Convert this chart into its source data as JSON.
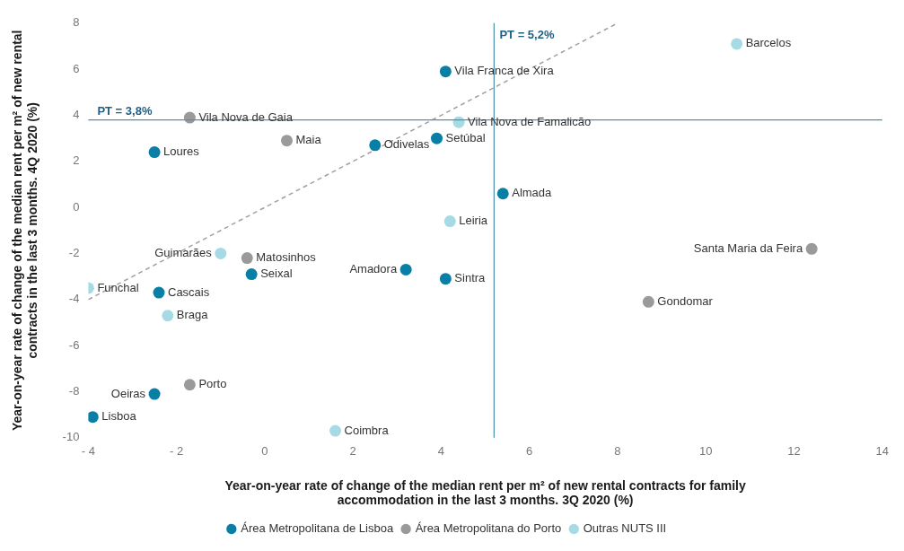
{
  "chart_data": {
    "type": "scatter",
    "xlabel": "Year-on-year rate of change of the median rent per m² of new rental contracts for family accommodation in the last 3 months. 3Q 2020 (%)",
    "ylabel": "Year-on-year rate of change of the median rent per m² of new rental contracts in the last 3 months. 4Q 2020 (%)",
    "xlim": [
      -4,
      14
    ],
    "xticks": [
      {
        "value": -4,
        "label": "- 4"
      },
      {
        "value": -2,
        "label": "- 2"
      },
      0,
      2,
      4,
      6,
      8,
      10,
      12,
      14
    ],
    "ylim": [
      -10,
      8
    ],
    "yticks": [
      -10,
      -8,
      -6,
      -4,
      -2,
      0,
      2,
      4,
      6,
      8
    ],
    "grid": false,
    "legend": "bottom",
    "marker": "circle",
    "series": [
      {
        "name": "Área Metropolitana de Lisboa",
        "color": "#0a7fa5",
        "x": [
          4.1,
          2.5,
          3.9,
          -2.5,
          5.4,
          -0.3,
          3.2,
          4.1,
          -2.4,
          -2.5,
          -3.9
        ],
        "values": [
          5.9,
          2.7,
          3.0,
          2.4,
          0.6,
          -2.9,
          -2.7,
          -3.1,
          -3.7,
          -8.1,
          -9.1
        ]
      },
      {
        "name": "Área Metropolitana do Porto",
        "color": "#9a9a9a",
        "x": [
          -1.7,
          0.5,
          -0.4,
          12.4,
          8.7,
          -1.7
        ],
        "values": [
          3.9,
          2.9,
          -2.2,
          -1.8,
          -4.1,
          -7.7
        ]
      },
      {
        "name": "Outras NUTS III",
        "color": "#a6dbe6",
        "x": [
          10.7,
          4.4,
          4.2,
          -1.0,
          -4.0,
          -2.2,
          1.6
        ],
        "values": [
          7.1,
          3.7,
          -0.6,
          -2.0,
          -3.5,
          -4.7,
          -9.7
        ]
      },
      {
        "type": "line",
        "color": "#a0a0a0",
        "line_style": "dashed",
        "marker": "none",
        "x": [
          -4,
          8
        ],
        "values": [
          -4,
          8
        ]
      }
    ],
    "ref_lines": [
      {
        "axis": "x",
        "value": 5.2,
        "label": "PT = 5,2%",
        "color": "#4f93b0"
      },
      {
        "axis": "y",
        "value": 3.8,
        "label": "PT = 3,8%",
        "color": "#4f93b0"
      }
    ],
    "annotations": [
      {
        "text": "Vila Franca de Xira",
        "x": 4.1,
        "y": 5.9
      },
      {
        "text": "Odivelas",
        "x": 2.5,
        "y": 2.7
      },
      {
        "text": "Setúbal",
        "x": 3.9,
        "y": 3.0
      },
      {
        "text": "Loures",
        "x": -2.5,
        "y": 2.4
      },
      {
        "text": "Almada",
        "x": 5.4,
        "y": 0.6
      },
      {
        "text": "Seixal",
        "x": -0.3,
        "y": -2.9
      },
      {
        "text": "Amadora",
        "x": 3.2,
        "y": -2.7
      },
      {
        "text": "Sintra",
        "x": 4.1,
        "y": -3.1
      },
      {
        "text": "Cascais",
        "x": -2.4,
        "y": -3.7
      },
      {
        "text": "Oeiras",
        "x": -2.5,
        "y": -8.1
      },
      {
        "text": "Lisboa",
        "x": -3.9,
        "y": -9.1
      },
      {
        "text": "Vila Nova de Gaia",
        "x": -1.7,
        "y": 3.9
      },
      {
        "text": "Maia",
        "x": 0.5,
        "y": 2.9
      },
      {
        "text": "Matosinhos",
        "x": -0.4,
        "y": -2.2
      },
      {
        "text": "Santa Maria da Feira",
        "x": 12.4,
        "y": -1.8
      },
      {
        "text": "Gondomar",
        "x": 8.7,
        "y": -4.1
      },
      {
        "text": "Porto",
        "x": -1.7,
        "y": -7.7
      },
      {
        "text": "Barcelos",
        "x": 10.7,
        "y": 7.1
      },
      {
        "text": "Vila Nova de Famalicão",
        "x": 4.4,
        "y": 3.7
      },
      {
        "text": "Leiria",
        "x": 4.2,
        "y": -0.6
      },
      {
        "text": "Guimarães",
        "x": -1.0,
        "y": -2.0
      },
      {
        "text": "Funchal",
        "x": -4.0,
        "y": -3.5
      },
      {
        "text": "Braga",
        "x": -2.2,
        "y": -4.7
      },
      {
        "text": "Coimbra",
        "x": 1.6,
        "y": -9.7
      }
    ]
  }
}
